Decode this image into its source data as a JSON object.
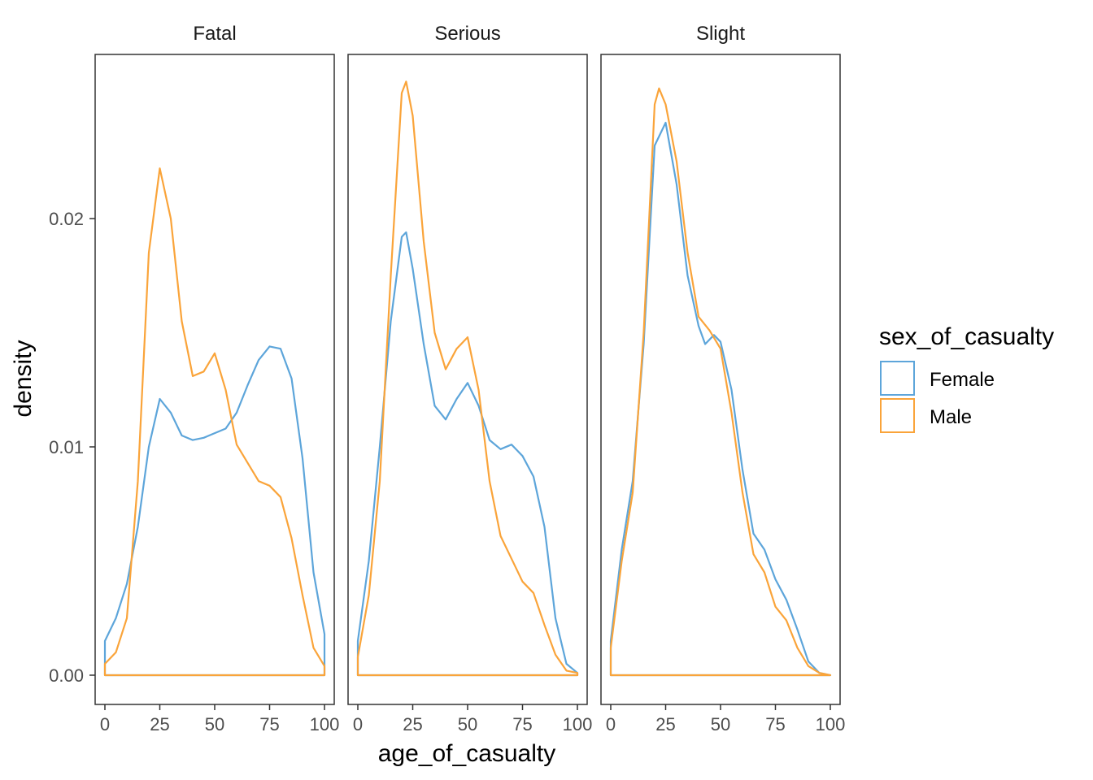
{
  "colors": {
    "Female": "#5DA5DA",
    "Male": "#FAA43A",
    "panel_border": "#333333",
    "tick": "#333333"
  },
  "chart_data": {
    "type": "density",
    "xlabel": "age_of_casualty",
    "ylabel": "density",
    "xlim": [
      0,
      100
    ],
    "ylim": [
      0,
      0.026
    ],
    "x_ticks": [
      0,
      25,
      50,
      75,
      100
    ],
    "x_tick_labels": [
      "0",
      "25",
      "50",
      "75",
      "100"
    ],
    "y_ticks": [
      0.0,
      0.01,
      0.02
    ],
    "y_tick_labels": [
      "0.00",
      "0.01",
      "0.02"
    ],
    "grid": false,
    "legend": {
      "title": "sex_of_casualty",
      "position": "right",
      "entries": [
        "Female",
        "Male"
      ]
    },
    "panels": [
      {
        "label": "Fatal",
        "series": [
          {
            "name": "Female",
            "points": [
              [
                0,
                0.0015
              ],
              [
                5,
                0.0025
              ],
              [
                10,
                0.004
              ],
              [
                15,
                0.0065
              ],
              [
                20,
                0.01
              ],
              [
                25,
                0.0121
              ],
              [
                30,
                0.0115
              ],
              [
                35,
                0.0105
              ],
              [
                40,
                0.0103
              ],
              [
                45,
                0.0104
              ],
              [
                50,
                0.0106
              ],
              [
                55,
                0.0108
              ],
              [
                60,
                0.0115
              ],
              [
                65,
                0.0127
              ],
              [
                70,
                0.0138
              ],
              [
                75,
                0.0144
              ],
              [
                80,
                0.0143
              ],
              [
                85,
                0.013
              ],
              [
                90,
                0.0095
              ],
              [
                95,
                0.0045
              ],
              [
                100,
                0.0018
              ]
            ]
          },
          {
            "name": "Male",
            "points": [
              [
                0,
                0.0005
              ],
              [
                5,
                0.001
              ],
              [
                10,
                0.0025
              ],
              [
                15,
                0.0085
              ],
              [
                20,
                0.0185
              ],
              [
                25,
                0.0222
              ],
              [
                30,
                0.02
              ],
              [
                35,
                0.0155
              ],
              [
                40,
                0.0131
              ],
              [
                45,
                0.0133
              ],
              [
                50,
                0.0141
              ],
              [
                55,
                0.0125
              ],
              [
                60,
                0.0101
              ],
              [
                65,
                0.0093
              ],
              [
                70,
                0.0085
              ],
              [
                75,
                0.0083
              ],
              [
                80,
                0.0078
              ],
              [
                85,
                0.006
              ],
              [
                90,
                0.0035
              ],
              [
                95,
                0.0012
              ],
              [
                100,
                0.0004
              ]
            ]
          }
        ]
      },
      {
        "label": "Serious",
        "series": [
          {
            "name": "Female",
            "points": [
              [
                0,
                0.0015
              ],
              [
                5,
                0.005
              ],
              [
                10,
                0.01
              ],
              [
                15,
                0.0155
              ],
              [
                20,
                0.0192
              ],
              [
                22,
                0.0194
              ],
              [
                25,
                0.0178
              ],
              [
                30,
                0.0145
              ],
              [
                35,
                0.0118
              ],
              [
                40,
                0.0112
              ],
              [
                45,
                0.0121
              ],
              [
                50,
                0.0128
              ],
              [
                55,
                0.0118
              ],
              [
                60,
                0.0103
              ],
              [
                65,
                0.0099
              ],
              [
                70,
                0.0101
              ],
              [
                75,
                0.0096
              ],
              [
                80,
                0.0087
              ],
              [
                85,
                0.0065
              ],
              [
                90,
                0.0025
              ],
              [
                95,
                0.0005
              ],
              [
                100,
                0.0001
              ]
            ]
          },
          {
            "name": "Male",
            "points": [
              [
                0,
                0.0008
              ],
              [
                5,
                0.0035
              ],
              [
                10,
                0.0085
              ],
              [
                15,
                0.0175
              ],
              [
                20,
                0.0255
              ],
              [
                22,
                0.026
              ],
              [
                25,
                0.0245
              ],
              [
                30,
                0.019
              ],
              [
                35,
                0.015
              ],
              [
                40,
                0.0134
              ],
              [
                45,
                0.0143
              ],
              [
                50,
                0.0148
              ],
              [
                55,
                0.0125
              ],
              [
                60,
                0.0085
              ],
              [
                65,
                0.0061
              ],
              [
                70,
                0.0051
              ],
              [
                75,
                0.0041
              ],
              [
                80,
                0.0036
              ],
              [
                85,
                0.0022
              ],
              [
                90,
                0.0009
              ],
              [
                95,
                0.0002
              ],
              [
                100,
                0.0001
              ]
            ]
          }
        ]
      },
      {
        "label": "Slight",
        "series": [
          {
            "name": "Female",
            "points": [
              [
                0,
                0.0015
              ],
              [
                5,
                0.0055
              ],
              [
                10,
                0.0085
              ],
              [
                15,
                0.0145
              ],
              [
                20,
                0.0232
              ],
              [
                25,
                0.0242
              ],
              [
                30,
                0.0215
              ],
              [
                35,
                0.0175
              ],
              [
                40,
                0.0153
              ],
              [
                43,
                0.0145
              ],
              [
                47,
                0.0149
              ],
              [
                50,
                0.0146
              ],
              [
                55,
                0.0125
              ],
              [
                60,
                0.009
              ],
              [
                65,
                0.0062
              ],
              [
                70,
                0.0055
              ],
              [
                75,
                0.0042
              ],
              [
                80,
                0.0033
              ],
              [
                85,
                0.002
              ],
              [
                90,
                0.0006
              ],
              [
                95,
                0.0001
              ],
              [
                100,
                0.0
              ]
            ]
          },
          {
            "name": "Male",
            "points": [
              [
                0,
                0.0012
              ],
              [
                5,
                0.005
              ],
              [
                10,
                0.008
              ],
              [
                15,
                0.015
              ],
              [
                20,
                0.025
              ],
              [
                22,
                0.0257
              ],
              [
                25,
                0.025
              ],
              [
                30,
                0.0225
              ],
              [
                35,
                0.0185
              ],
              [
                40,
                0.0157
              ],
              [
                45,
                0.0151
              ],
              [
                50,
                0.0143
              ],
              [
                55,
                0.0115
              ],
              [
                60,
                0.008
              ],
              [
                65,
                0.0053
              ],
              [
                70,
                0.0045
              ],
              [
                75,
                0.003
              ],
              [
                80,
                0.0024
              ],
              [
                85,
                0.0012
              ],
              [
                90,
                0.0004
              ],
              [
                95,
                0.0001
              ],
              [
                100,
                0.0
              ]
            ]
          }
        ]
      }
    ]
  }
}
